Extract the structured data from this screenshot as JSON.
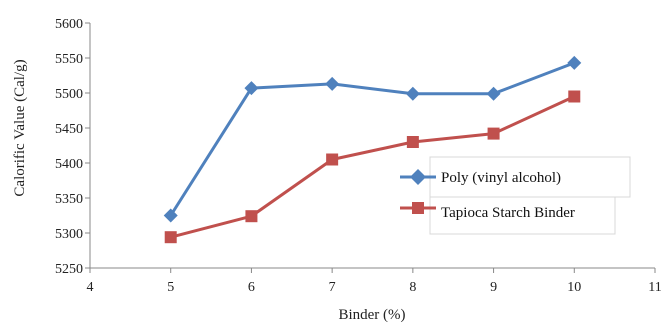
{
  "chart_data": {
    "type": "line",
    "xlabel": "Binder (%)",
    "ylabel": "Calorific  Value (Cal/g)",
    "xlim": [
      4,
      11
    ],
    "ylim": [
      5250,
      5600
    ],
    "x_ticks": [
      "4",
      "5",
      "6",
      "7",
      "8",
      "9",
      "10",
      "11"
    ],
    "y_ticks": [
      "5250",
      "5300",
      "5350",
      "5400",
      "5450",
      "5500",
      "5550",
      "5600"
    ],
    "grid": false,
    "legend_position": "right",
    "series": [
      {
        "name": "Poly (vinyl alcohol)",
        "marker": "diamond",
        "color": "#4f81bd",
        "x": [
          5,
          6,
          7,
          8,
          9,
          10
        ],
        "y": [
          5325,
          5507,
          5513,
          5499,
          5499,
          5543
        ]
      },
      {
        "name": "Tapioca Starch Binder",
        "marker": "square",
        "color": "#c0504d",
        "x": [
          5,
          6,
          7,
          8,
          9,
          10
        ],
        "y": [
          5294,
          5324,
          5405,
          5430,
          5442,
          5495
        ]
      }
    ]
  }
}
